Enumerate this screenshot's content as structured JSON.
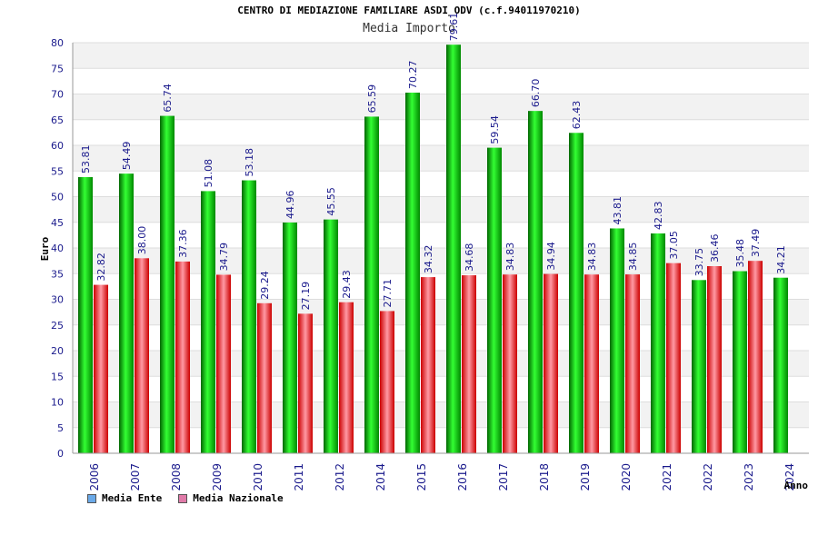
{
  "chart_data": {
    "type": "bar",
    "title": "CENTRO DI MEDIAZIONE FAMILIARE ASDI_ODV (c.f.94011970210)",
    "subtitle": "Media Importo",
    "xlabel": "Anno",
    "ylabel": "Euro",
    "ylim": [
      0,
      80
    ],
    "ytick_step": 5,
    "grid": true,
    "legend_position": "bottom-left",
    "categories": [
      "2006",
      "2007",
      "2008",
      "2009",
      "2010",
      "2011",
      "2012",
      "2014",
      "2015",
      "2016",
      "2017",
      "2018",
      "2019",
      "2020",
      "2021",
      "2022",
      "2023",
      "2024"
    ],
    "series": [
      {
        "name": "Media Ente",
        "color": "#00cc00",
        "legend_color": "#6aa9e8",
        "values": [
          53.81,
          54.49,
          65.74,
          51.08,
          53.18,
          44.96,
          45.55,
          65.59,
          70.27,
          79.61,
          59.54,
          66.7,
          62.43,
          43.81,
          42.83,
          33.75,
          35.48,
          34.21
        ],
        "labels": [
          "53.81",
          "54.49",
          "65.74",
          "51.08",
          "53.18",
          "44.96",
          "45.55",
          "65.59",
          "70.27",
          "79.61",
          "59.54",
          "66.70",
          "62.43",
          "43.81",
          "42.83",
          "33.75",
          "35.48",
          "34.21"
        ]
      },
      {
        "name": "Media Nazionale",
        "color": "#ee1c24",
        "legend_color": "#e07aa8",
        "values": [
          32.82,
          38.0,
          37.36,
          34.79,
          29.24,
          27.19,
          29.43,
          27.71,
          34.32,
          34.68,
          34.83,
          34.94,
          34.83,
          34.85,
          37.05,
          36.46,
          37.49,
          null
        ],
        "labels": [
          "32.82",
          "38.00",
          "37.36",
          "34.79",
          "29.24",
          "27.19",
          "29.43",
          "27.71",
          "34.32",
          "34.68",
          "34.83",
          "34.94",
          "34.83",
          "34.85",
          "37.05",
          "36.46",
          "37.49",
          ""
        ]
      }
    ]
  }
}
